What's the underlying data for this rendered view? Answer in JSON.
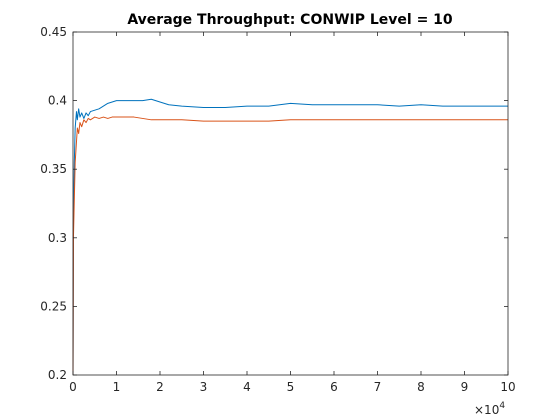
{
  "chart_data": {
    "type": "line",
    "title": "Average Throughput: CONWIP Level = 10",
    "xlabel": "",
    "ylabel": "",
    "xlim": [
      0,
      100000
    ],
    "ylim": [
      0.2,
      0.45
    ],
    "x_ticks": [
      0,
      10000,
      20000,
      30000,
      40000,
      50000,
      60000,
      70000,
      80000,
      90000,
      100000
    ],
    "x_tick_labels": [
      "0",
      "1",
      "2",
      "3",
      "4",
      "5",
      "6",
      "7",
      "8",
      "9",
      "10"
    ],
    "x_exponent": {
      "base": "×10",
      "power": "4"
    },
    "y_ticks": [
      0.2,
      0.25,
      0.3,
      0.35,
      0.4,
      0.45
    ],
    "y_tick_labels": [
      "0.2",
      "0.25",
      "0.3",
      "0.35",
      "0.4",
      "0.45"
    ],
    "grid": false,
    "box": true,
    "series": [
      {
        "color": "#0072BD",
        "x": [
          0,
          100,
          300,
          500,
          800,
          1000,
          1300,
          1600,
          2000,
          2500,
          3000,
          3500,
          4000,
          5000,
          6000,
          7000,
          8000,
          9000,
          10000,
          12000,
          14000,
          16000,
          18000,
          19000,
          20000,
          22000,
          25000,
          30000,
          35000,
          40000,
          45000,
          50000,
          55000,
          60000,
          65000,
          70000,
          75000,
          80000,
          85000,
          90000,
          95000,
          100000
        ],
        "values": [
          0.2,
          0.31,
          0.355,
          0.38,
          0.392,
          0.386,
          0.394,
          0.388,
          0.391,
          0.387,
          0.391,
          0.389,
          0.392,
          0.393,
          0.394,
          0.396,
          0.398,
          0.399,
          0.4,
          0.4,
          0.4,
          0.4,
          0.401,
          0.4,
          0.399,
          0.397,
          0.396,
          0.395,
          0.395,
          0.396,
          0.396,
          0.398,
          0.397,
          0.397,
          0.397,
          0.397,
          0.396,
          0.397,
          0.396,
          0.396,
          0.396,
          0.396
        ]
      },
      {
        "color": "#D95319",
        "x": [
          0,
          100,
          300,
          500,
          800,
          1000,
          1300,
          1600,
          2000,
          2500,
          3000,
          3500,
          4000,
          5000,
          6000,
          7000,
          8000,
          9000,
          10000,
          12000,
          14000,
          16000,
          18000,
          20000,
          22000,
          25000,
          30000,
          35000,
          40000,
          45000,
          50000,
          55000,
          60000,
          65000,
          70000,
          75000,
          80000,
          85000,
          90000,
          95000,
          100000
        ],
        "values": [
          0.2,
          0.3,
          0.328,
          0.355,
          0.37,
          0.38,
          0.376,
          0.384,
          0.381,
          0.386,
          0.384,
          0.387,
          0.386,
          0.388,
          0.387,
          0.388,
          0.387,
          0.388,
          0.388,
          0.388,
          0.388,
          0.387,
          0.386,
          0.386,
          0.386,
          0.386,
          0.385,
          0.385,
          0.385,
          0.385,
          0.386,
          0.386,
          0.386,
          0.386,
          0.386,
          0.386,
          0.386,
          0.386,
          0.386,
          0.386,
          0.386
        ]
      }
    ]
  }
}
